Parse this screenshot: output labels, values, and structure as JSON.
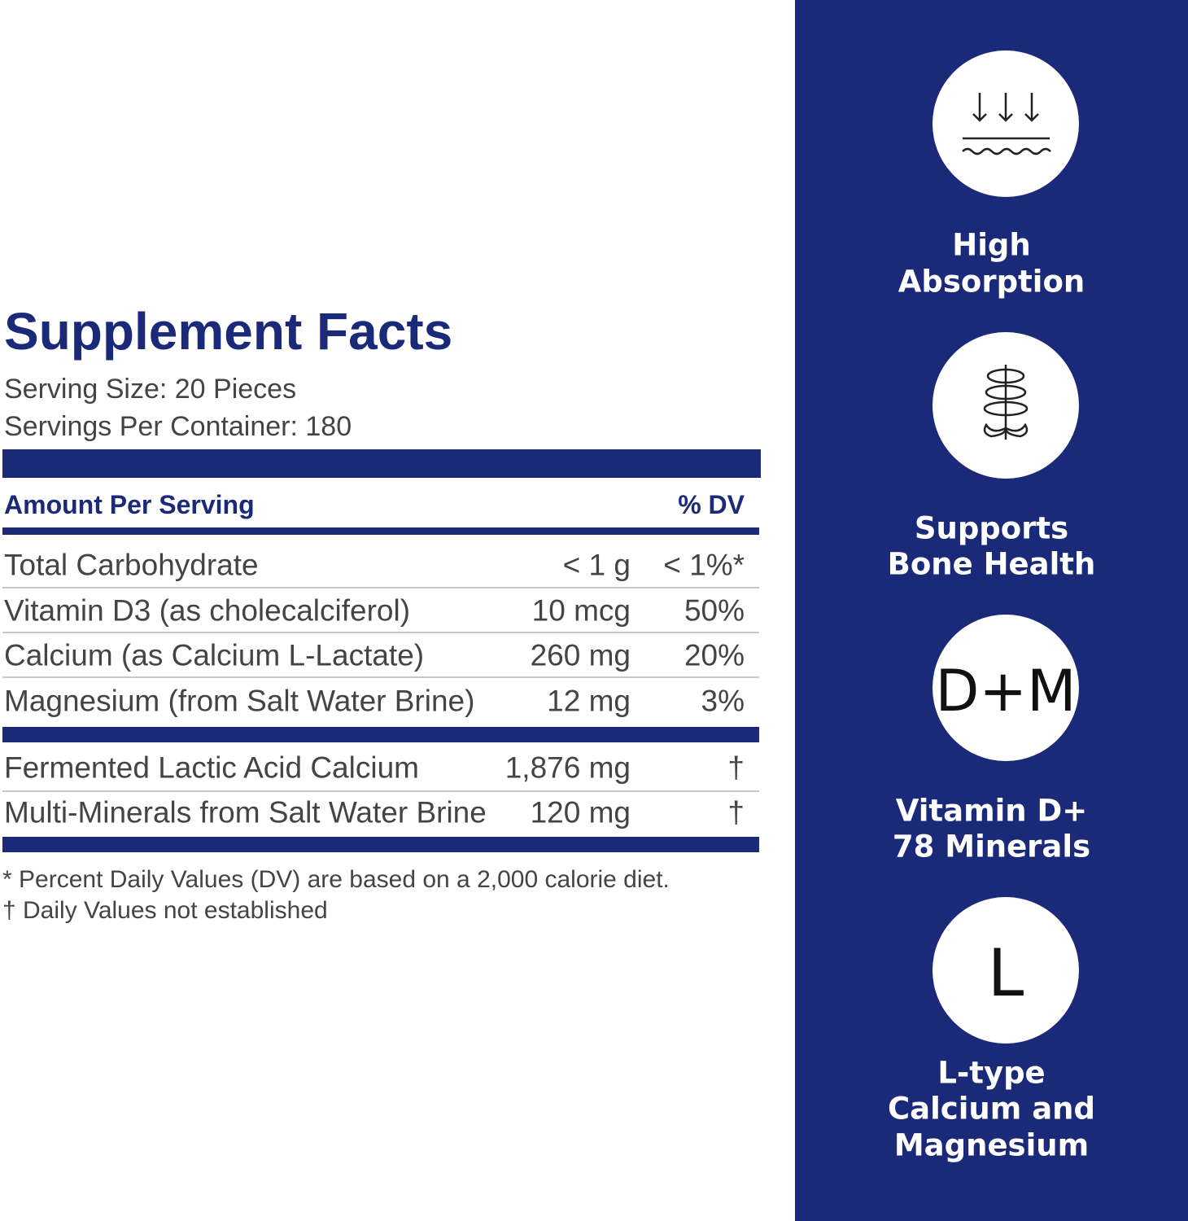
{
  "facts": {
    "title": "Supplement Facts",
    "serving_size": "Serving Size: 20 Pieces",
    "servings_per_container": "Servings Per Container: 180",
    "header": {
      "amount": "Amount Per Serving",
      "dv": "% DV"
    },
    "rows": [
      [
        "Total Carbohydrate",
        "< 1 g",
        "< 1%*"
      ],
      [
        "Vitamin D3 (as cholecalciferol)",
        "10 mcg",
        "50%"
      ],
      [
        "Calcium (as Calcium L-Lactate)",
        "260 mg",
        "20%"
      ],
      [
        "Magnesium (from Salt Water Brine)",
        "12 mg",
        "3%"
      ]
    ],
    "other_rows": [
      [
        "Fermented Lactic Acid Calcium",
        "1,876 mg",
        "†"
      ],
      [
        "Multi-Minerals from Salt Water Brine",
        "120 mg",
        "†"
      ]
    ],
    "footnotes": [
      "* Percent Daily Values (DV) are based on a 2,000 calorie diet.",
      "† Daily Values not established"
    ]
  },
  "features": [
    {
      "label": [
        "High",
        "Absorption"
      ]
    },
    {
      "label": [
        "Supports",
        "Bone Health"
      ]
    },
    {
      "icon_text": "D+M",
      "label": [
        "Vitamin D+",
        "78 Minerals"
      ]
    },
    {
      "icon_text": "L",
      "label": [
        "L-type",
        "Calcium and",
        "Magnesium"
      ]
    }
  ]
}
